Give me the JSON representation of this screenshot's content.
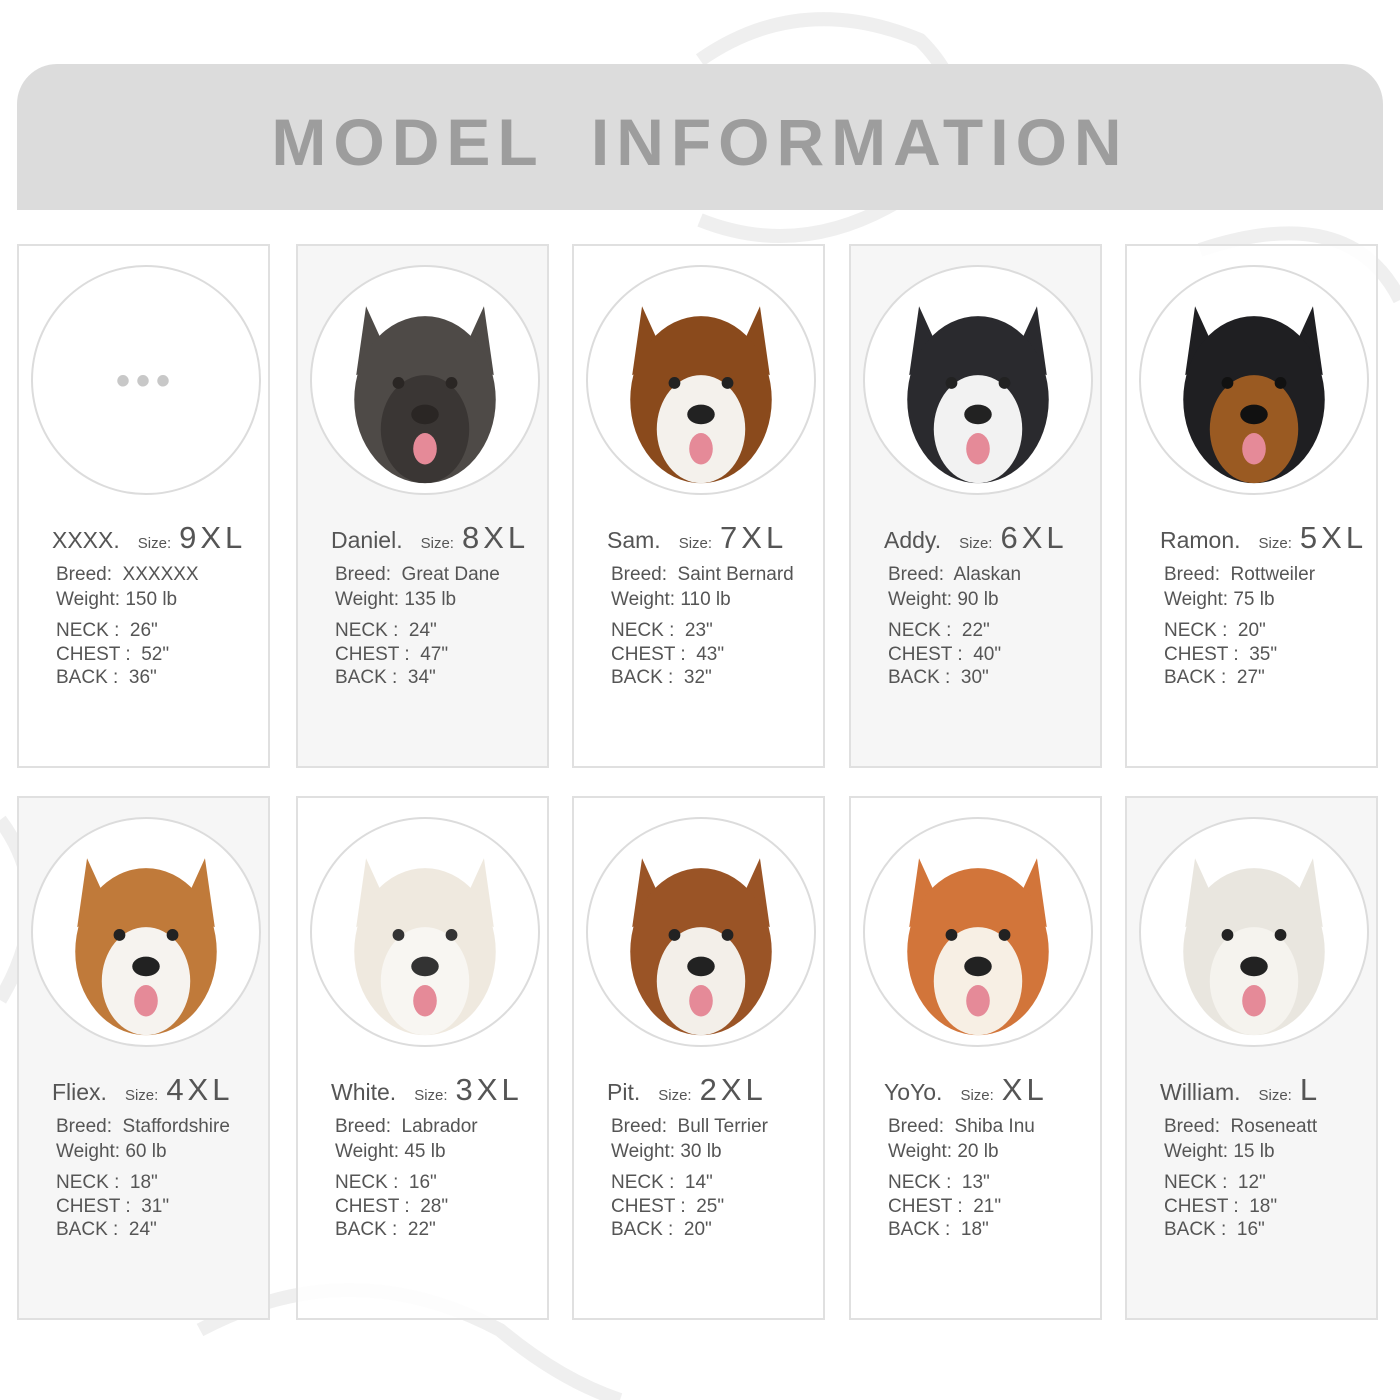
{
  "header": {
    "title": "MODEL  INFORMATION"
  },
  "placeholder_icon": "ellipsis-icon",
  "labels": {
    "size": "Size:",
    "breed": "Breed:",
    "weight": "Weight:",
    "neck": "NECK",
    "chest": "CHEST",
    "back": "BACK"
  },
  "models": [
    {
      "name": "XXXX.",
      "size": "9XL",
      "breed": "XXXXXX",
      "weight": "150 lb",
      "neck": "26\"",
      "chest": "52\"",
      "back": "36\"",
      "photo": "placeholder",
      "colors": []
    },
    {
      "name": "Daniel.",
      "size": "8XL",
      "breed": "Great Dane",
      "weight": "135 lb",
      "neck": "24\"",
      "chest": "47\"",
      "back": "34\"",
      "photo": "great-dane-photo",
      "colors": [
        "#4e4a47",
        "#3a3634",
        "#2a2624"
      ]
    },
    {
      "name": "Sam.",
      "size": "7XL",
      "breed": "Saint Bernard",
      "weight": "110 lb",
      "neck": "23\"",
      "chest": "43\"",
      "back": "32\"",
      "photo": "saint-bernard-photo",
      "colors": [
        "#8a4a1c",
        "#f4f1ec",
        "#222"
      ]
    },
    {
      "name": "Addy.",
      "size": "6XL",
      "breed": "Alaskan",
      "weight": "90 lb",
      "neck": "22\"",
      "chest": "40\"",
      "back": "30\"",
      "photo": "alaskan-malamute-photo",
      "colors": [
        "#2a2a2e",
        "#f2f2f2",
        "#222"
      ]
    },
    {
      "name": "Ramon.",
      "size": "5XL",
      "breed": "Rottweiler",
      "weight": "75 lb",
      "neck": "20\"",
      "chest": "35\"",
      "back": "27\"",
      "photo": "rottweiler-photo",
      "colors": [
        "#1f1f22",
        "#9a5a22",
        "#111"
      ]
    },
    {
      "name": "Fliex.",
      "size": "4XL",
      "breed": "Staffordshire",
      "weight": "60 lb",
      "neck": "18\"",
      "chest": "31\"",
      "back": "24\"",
      "photo": "staffordshire-photo",
      "colors": [
        "#c07a3a",
        "#f6f3ef",
        "#222"
      ]
    },
    {
      "name": "White.",
      "size": "3XL",
      "breed": "Labrador",
      "weight": "45 lb",
      "neck": "16\"",
      "chest": "28\"",
      "back": "22\"",
      "photo": "labrador-photo",
      "colors": [
        "#efe9df",
        "#f8f6f2",
        "#333"
      ]
    },
    {
      "name": "Pit.",
      "size": "2XL",
      "breed": "Bull Terrier",
      "weight": "30 lb",
      "neck": "14\"",
      "chest": "25\"",
      "back": "20\"",
      "photo": "bull-terrier-photo",
      "colors": [
        "#9a5426",
        "#f3efe9",
        "#222"
      ]
    },
    {
      "name": "YoYo.",
      "size": "XL",
      "breed": "Shiba Inu",
      "weight": "20 lb",
      "neck": "13\"",
      "chest": "21\"",
      "back": "18\"",
      "photo": "shiba-inu-photo",
      "colors": [
        "#d2753a",
        "#f7efe4",
        "#222"
      ]
    },
    {
      "name": "William.",
      "size": "L",
      "breed": "Roseneatt",
      "weight": "15 lb",
      "neck": "12\"",
      "chest": "18\"",
      "back": "16\"",
      "photo": "westie-photo",
      "colors": [
        "#e9e6df",
        "#f5f3ee",
        "#222"
      ]
    }
  ]
}
